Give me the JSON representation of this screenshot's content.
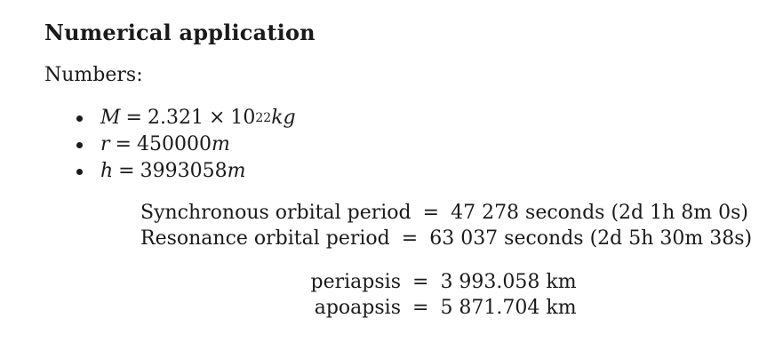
{
  "section": {
    "title": "Numerical application",
    "intro": "Numbers:"
  },
  "variables": [
    {
      "symbol": "M",
      "value": "2.321",
      "times": "×",
      "base": "10",
      "exponent": "22",
      "unit": "kg"
    },
    {
      "symbol": "r",
      "value": "450000",
      "unit": "m"
    },
    {
      "symbol": "h",
      "value": "3993058",
      "unit": "m"
    }
  ],
  "orbital": [
    {
      "label": "Synchronous orbital period",
      "value": "47 278 seconds (2d 1h 8m 0s)"
    },
    {
      "label": "Resonance orbital period",
      "value": "63 037 seconds (2d 5h 30m 38s)"
    }
  ],
  "apsides": [
    {
      "label": "periapsis",
      "value": "3 993.058 km"
    },
    {
      "label": "apoapsis",
      "value": "5 871.704 km"
    }
  ],
  "symbols": {
    "equals": "="
  }
}
